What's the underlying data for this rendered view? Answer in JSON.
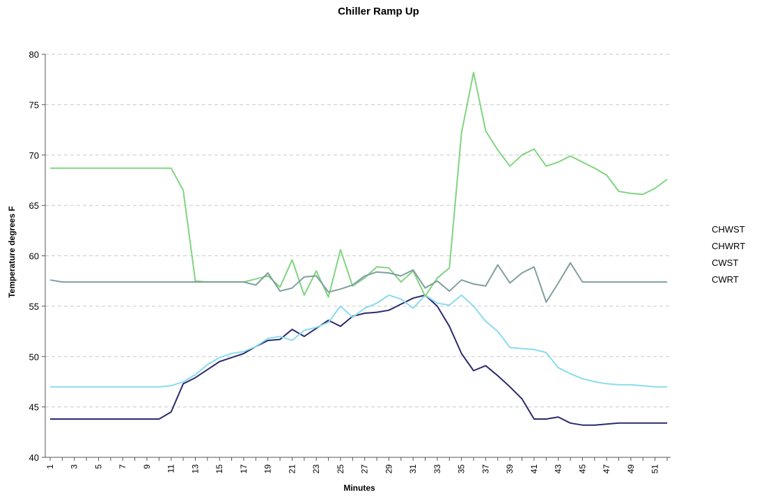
{
  "chart_data": {
    "type": "line",
    "title": "Chiller Ramp Up",
    "xlabel": "Minutes",
    "ylabel": "Temperature degrees F",
    "ylim": [
      40,
      80
    ],
    "yticks": [
      40,
      45,
      50,
      55,
      60,
      65,
      70,
      75,
      80
    ],
    "x": [
      1,
      2,
      3,
      4,
      5,
      6,
      7,
      8,
      9,
      10,
      11,
      12,
      13,
      14,
      15,
      16,
      17,
      18,
      19,
      20,
      21,
      22,
      23,
      24,
      25,
      26,
      27,
      28,
      29,
      30,
      31,
      32,
      33,
      34,
      35,
      36,
      37,
      38,
      39,
      40,
      41,
      42,
      43,
      44,
      45,
      46,
      47,
      48,
      49,
      50,
      51,
      52
    ],
    "xtick_labels": [
      "1",
      "3",
      "5",
      "7",
      "9",
      "11",
      "13",
      "15",
      "17",
      "19",
      "21",
      "23",
      "25",
      "27",
      "29",
      "31",
      "33",
      "35",
      "37",
      "39",
      "41",
      "43",
      "45",
      "47",
      "49",
      "51"
    ],
    "grid": true,
    "legend": "right",
    "series": [
      {
        "name": "CHWST",
        "color": "#2a2a6e",
        "values": [
          43.8,
          43.8,
          43.8,
          43.8,
          43.8,
          43.8,
          43.8,
          43.8,
          43.8,
          43.8,
          44.5,
          47.3,
          47.9,
          48.7,
          49.5,
          49.9,
          50.3,
          51.0,
          51.6,
          51.7,
          52.7,
          52.0,
          52.8,
          53.6,
          53.0,
          54.0,
          54.3,
          54.4,
          54.6,
          55.2,
          55.8,
          56.1,
          55.0,
          53.0,
          50.3,
          48.6,
          49.1,
          48.1,
          47.0,
          45.8,
          43.8,
          43.8,
          44.0,
          43.4,
          43.2,
          43.2,
          43.3,
          43.4,
          43.4,
          43.4,
          43.4,
          43.4
        ]
      },
      {
        "name": "CHWRT",
        "color": "#88dcee",
        "values": [
          47.0,
          47.0,
          47.0,
          47.0,
          47.0,
          47.0,
          47.0,
          47.0,
          47.0,
          47.0,
          47.1,
          47.5,
          48.2,
          49.2,
          49.9,
          50.3,
          50.5,
          51.0,
          51.8,
          52.0,
          51.6,
          52.6,
          52.9,
          53.4,
          55.0,
          53.9,
          54.8,
          55.3,
          56.1,
          55.7,
          54.8,
          56.1,
          55.3,
          55.1,
          56.1,
          55.0,
          53.5,
          52.5,
          50.9,
          50.8,
          50.7,
          50.4,
          48.9,
          48.3,
          47.8,
          47.5,
          47.3,
          47.2,
          47.2,
          47.1,
          47.0,
          47.0
        ]
      },
      {
        "name": "CWST",
        "color": "#7fd47f",
        "values": [
          68.7,
          68.7,
          68.7,
          68.7,
          68.7,
          68.7,
          68.7,
          68.7,
          68.7,
          68.7,
          68.7,
          66.5,
          57.5,
          57.4,
          57.4,
          57.4,
          57.4,
          57.7,
          58.0,
          56.9,
          59.6,
          56.1,
          58.5,
          55.9,
          60.6,
          57.0,
          57.8,
          58.9,
          58.8,
          57.4,
          58.5,
          56.0,
          57.8,
          58.8,
          72.2,
          78.2,
          72.4,
          70.5,
          68.9,
          70.0,
          70.6,
          68.9,
          69.3,
          69.9,
          69.3,
          68.7,
          68.0,
          66.4,
          66.2,
          66.1,
          66.7,
          67.6
        ]
      },
      {
        "name": "CWRT",
        "color": "#7f9e9e",
        "values": [
          57.6,
          57.4,
          57.4,
          57.4,
          57.4,
          57.4,
          57.4,
          57.4,
          57.4,
          57.4,
          57.4,
          57.4,
          57.4,
          57.4,
          57.4,
          57.4,
          57.4,
          57.1,
          58.3,
          56.5,
          56.8,
          57.9,
          58.0,
          56.4,
          56.7,
          57.1,
          58.0,
          58.4,
          58.3,
          58.0,
          58.6,
          56.8,
          57.5,
          56.5,
          57.6,
          57.2,
          57.0,
          59.1,
          57.3,
          58.3,
          58.9,
          55.4,
          57.3,
          59.3,
          57.4,
          57.4,
          57.4,
          57.4,
          57.4,
          57.4,
          57.4,
          57.4
        ]
      }
    ]
  }
}
